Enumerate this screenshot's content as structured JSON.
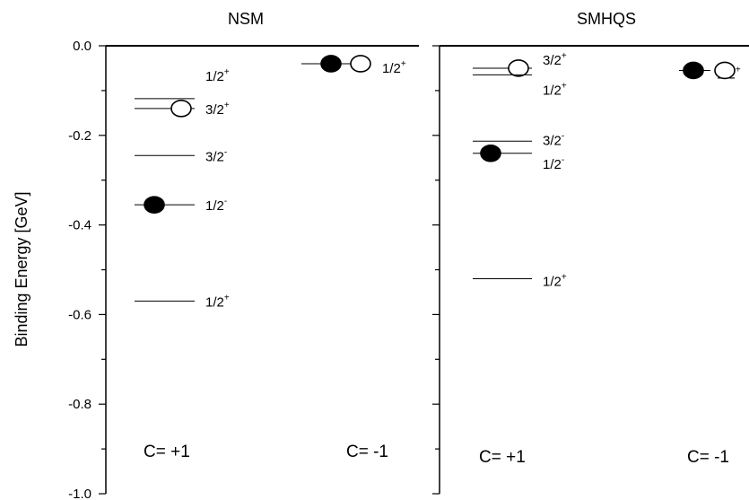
{
  "chart_data": {
    "type": "scatter",
    "ylabel": "Binding Energy [GeV]",
    "ylim": [
      -1.0,
      0.0
    ],
    "yticks": [
      "0.0",
      "-0.2",
      "-0.4",
      "-0.6",
      "-0.8",
      "-1.0"
    ],
    "panels": [
      {
        "title": "NSM",
        "levels": [
          {
            "column": "C=+1",
            "energy": -0.118,
            "label": "1/2",
            "parity": "+"
          },
          {
            "column": "C=+1",
            "energy": -0.14,
            "label": "3/2",
            "parity": "+",
            "marker": "open"
          },
          {
            "column": "C=+1",
            "energy": -0.245,
            "label": "3/2",
            "parity": "-"
          },
          {
            "column": "C=+1",
            "energy": -0.355,
            "label": "1/2",
            "parity": "-",
            "marker": "filled"
          },
          {
            "column": "C=+1",
            "energy": -0.57,
            "label": "1/2",
            "parity": "+"
          },
          {
            "column": "C=-1",
            "energy": -0.04,
            "label": "1/2",
            "parity": "+",
            "markers": [
              "filled",
              "open"
            ]
          }
        ],
        "column_labels": [
          "C= +1",
          "C= -1"
        ]
      },
      {
        "title": "SMHQS",
        "levels": [
          {
            "column": "C=+1",
            "energy": -0.05,
            "label": "3/2",
            "parity": "+",
            "marker": "open"
          },
          {
            "column": "C=+1",
            "energy": -0.065,
            "label": "1/2",
            "parity": "+"
          },
          {
            "column": "C=+1",
            "energy": -0.213,
            "label": "3/2",
            "parity": "-"
          },
          {
            "column": "C=+1",
            "energy": -0.24,
            "label": "1/2",
            "parity": "-",
            "marker": "filled"
          },
          {
            "column": "C=+1",
            "energy": -0.52,
            "label": "1/2",
            "parity": "+"
          },
          {
            "column": "C=-1",
            "energy": -0.055,
            "label": "1/2",
            "parity": "+",
            "markers": [
              "filled",
              "open"
            ]
          }
        ],
        "column_labels": [
          "C= +1",
          "C= -1"
        ]
      }
    ]
  }
}
